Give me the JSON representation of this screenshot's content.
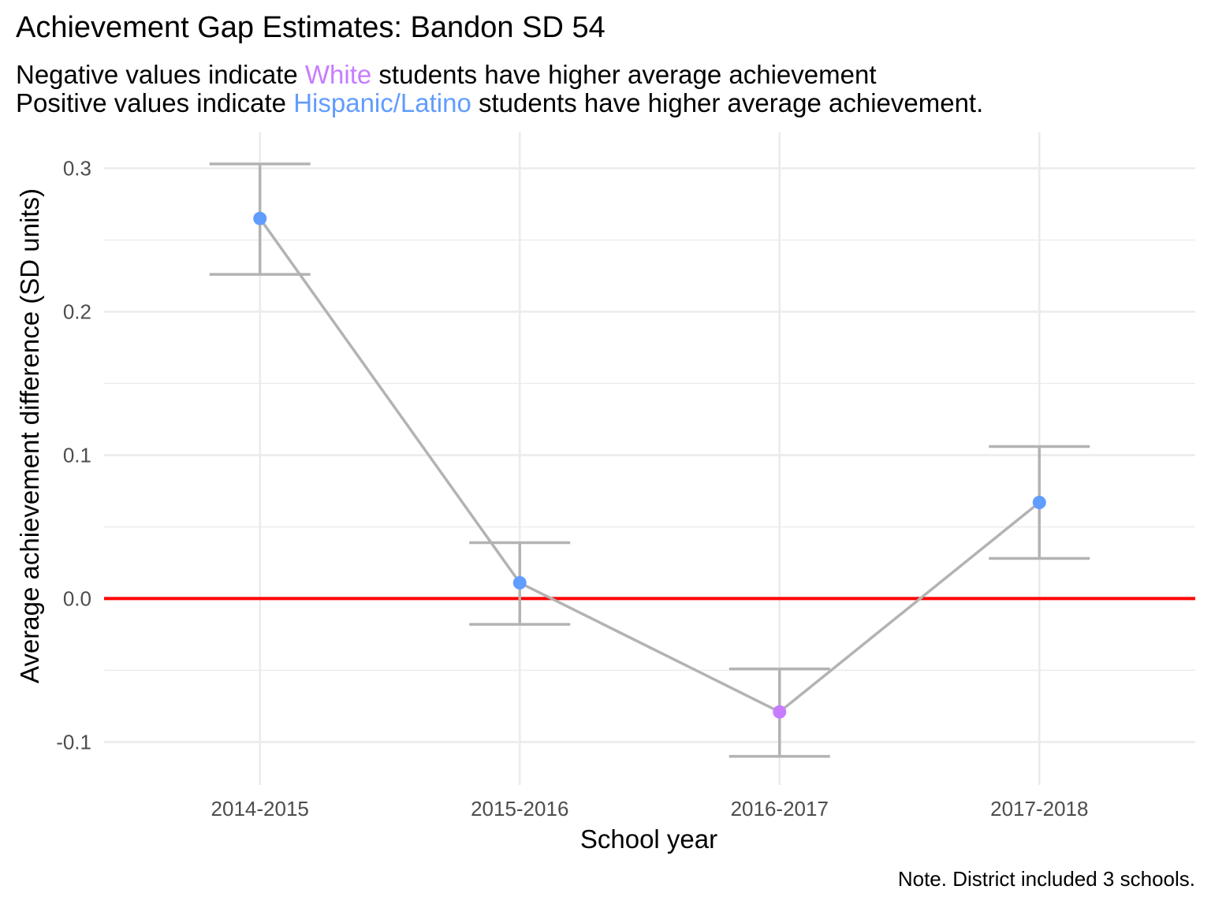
{
  "title": "Achievement Gap Estimates: Bandon SD 54",
  "subtitle": {
    "line1_before": "Negative values indicate ",
    "line1_group": "White",
    "line1_after": " students have higher average achievement",
    "line2_before": "Positive values indicate ",
    "line2_group": "Hispanic/Latino",
    "line2_after": " students have higher average achievement."
  },
  "caption": "Note. District included 3 schools.",
  "colors": {
    "white_group": "#C77CFF",
    "hispanic_group": "#619CFF",
    "line": "#B3B3B3",
    "reference_line": "#FF0000",
    "grid": "#EBEBEB"
  },
  "chart_data": {
    "type": "line",
    "xlabel": "School year",
    "ylabel": "Average achievement difference (SD units)",
    "categories": [
      "2014-2015",
      "2015-2016",
      "2016-2017",
      "2017-2018"
    ],
    "values": [
      0.265,
      0.011,
      -0.079,
      0.067
    ],
    "lower": [
      0.226,
      -0.018,
      -0.11,
      0.028
    ],
    "upper": [
      0.303,
      0.039,
      -0.049,
      0.106
    ],
    "point_group": [
      "Hispanic/Latino",
      "Hispanic/Latino",
      "White",
      "Hispanic/Latino"
    ],
    "reference_line_y": 0,
    "yticks": [
      -0.1,
      0.0,
      0.1,
      0.2,
      0.3
    ],
    "ytick_labels": [
      "-0.1",
      "0.0",
      "0.1",
      "0.2",
      "0.3"
    ],
    "ylim": [
      -0.13,
      0.325
    ],
    "grid": true,
    "legend": "none"
  }
}
